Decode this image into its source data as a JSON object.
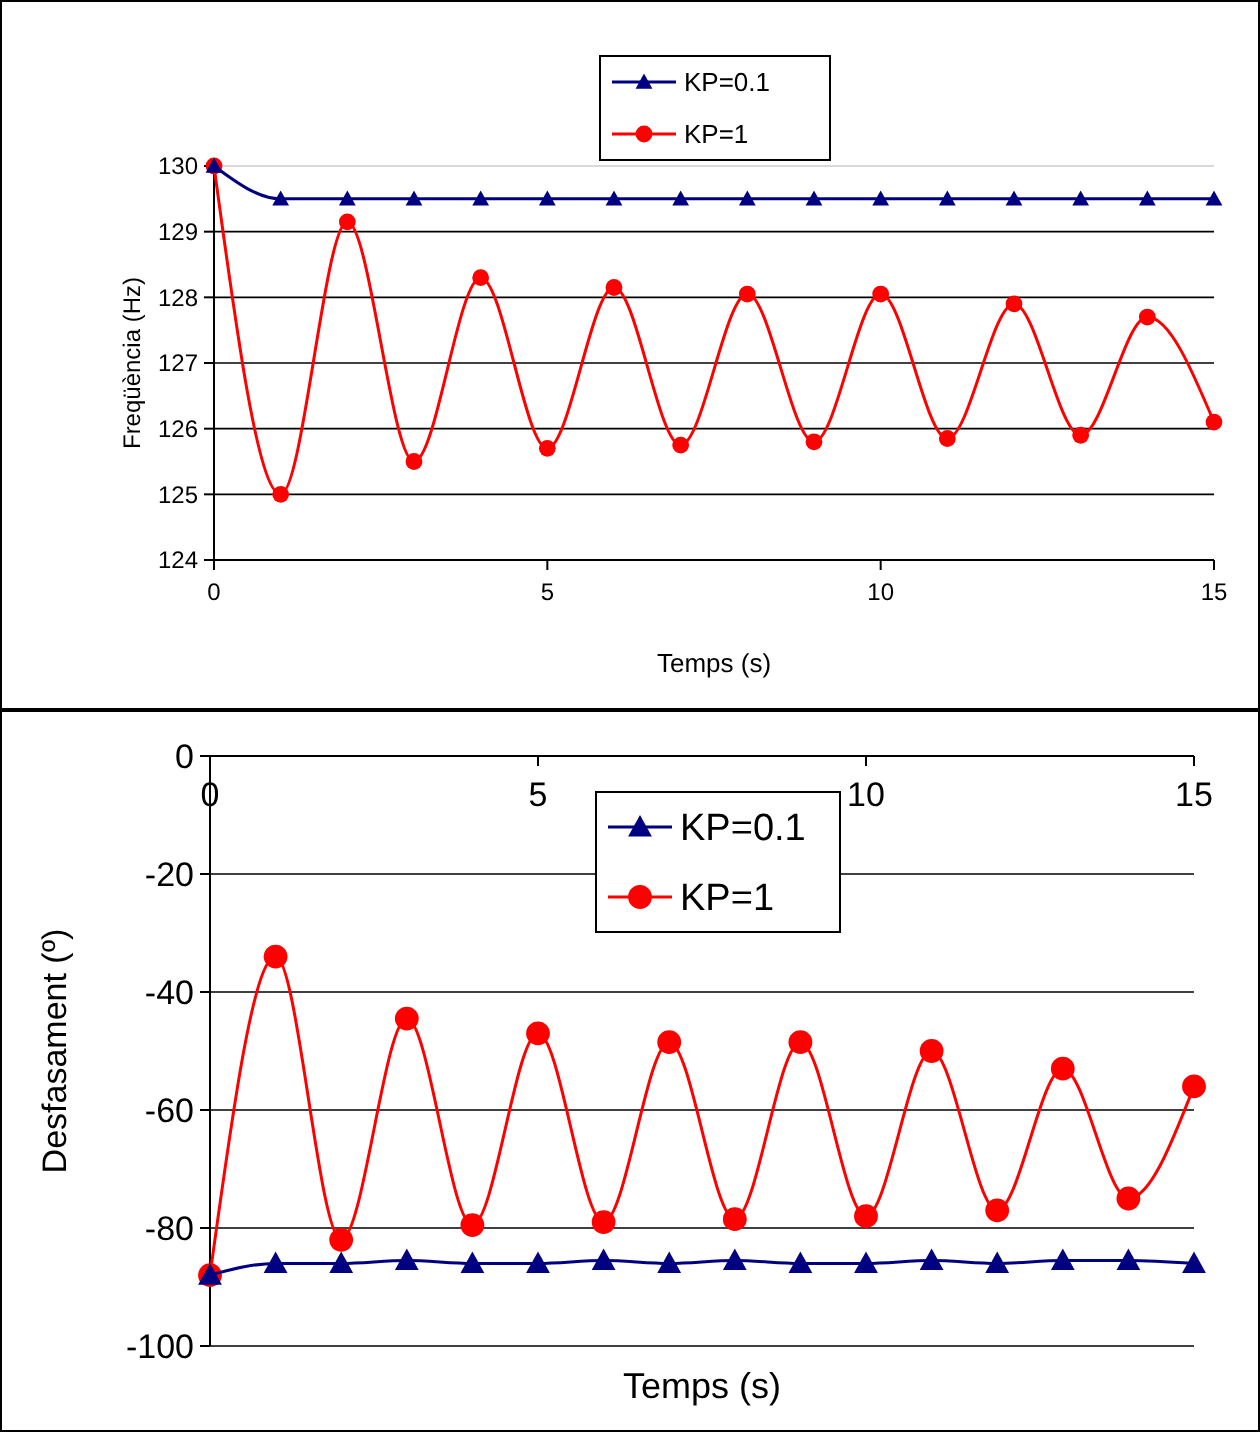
{
  "chart_data": [
    {
      "type": "line",
      "xlabel": "Temps (s)",
      "ylabel": "Freqüència (Hz)",
      "x": [
        0,
        1,
        2,
        3,
        4,
        5,
        6,
        7,
        8,
        9,
        10,
        11,
        12,
        13,
        14,
        15
      ],
      "xlim": [
        0,
        15
      ],
      "xticks": [
        0,
        5,
        10,
        15
      ],
      "ylim": [
        124,
        130
      ],
      "yticks": [
        124,
        125,
        126,
        127,
        128,
        129,
        130
      ],
      "grid": "y",
      "legend": "top",
      "line_style": "solid",
      "series": [
        {
          "name": "KP=0.1",
          "color": "#000080",
          "marker": "triangle",
          "values": [
            130,
            129.5,
            129.5,
            129.5,
            129.5,
            129.5,
            129.5,
            129.5,
            129.5,
            129.5,
            129.5,
            129.5,
            129.5,
            129.5,
            129.5,
            129.5
          ]
        },
        {
          "name": "KP=1",
          "color": "#ff0000",
          "marker": "circle",
          "values": [
            130,
            125.0,
            129.15,
            125.5,
            128.3,
            125.7,
            128.15,
            125.75,
            128.05,
            125.8,
            128.05,
            125.85,
            127.9,
            125.9,
            127.7,
            126.1
          ]
        }
      ]
    },
    {
      "type": "line",
      "xlabel": "Temps (s)",
      "ylabel": "Desfasament (º)",
      "x": [
        0,
        1,
        2,
        3,
        4,
        5,
        6,
        7,
        8,
        9,
        10,
        11,
        12,
        13,
        14,
        15
      ],
      "xlim": [
        0,
        15
      ],
      "xticks": [
        0,
        5,
        10,
        15
      ],
      "ylim": [
        -100,
        0
      ],
      "yticks": [
        -100,
        -80,
        -60,
        -40,
        -20,
        0
      ],
      "grid": "y",
      "legend": "top",
      "line_style": "solid",
      "series": [
        {
          "name": "KP=0.1",
          "color": "#000080",
          "marker": "triangle",
          "values": [
            -88,
            -86,
            -86,
            -85.5,
            -86,
            -86,
            -85.5,
            -86,
            -85.5,
            -86,
            -86,
            -85.5,
            -86,
            -85.5,
            -85.5,
            -86
          ]
        },
        {
          "name": "KP=1",
          "color": "#ff0000",
          "marker": "circle",
          "values": [
            -88,
            -34,
            -82,
            -44.5,
            -79.5,
            -47,
            -79,
            -48.5,
            -78.5,
            -48.5,
            -78,
            -50,
            -77,
            -53,
            -75,
            -56
          ]
        }
      ]
    }
  ]
}
